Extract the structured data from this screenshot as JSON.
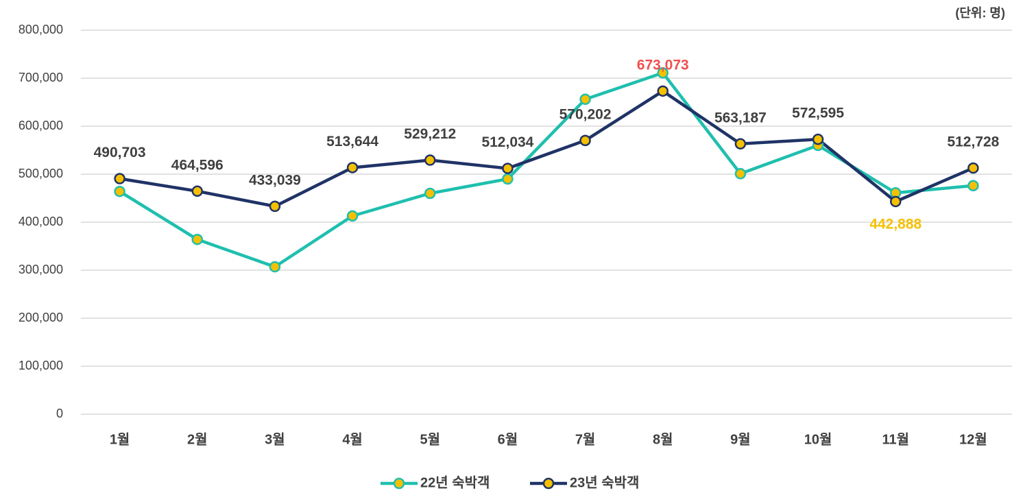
{
  "chart_data": {
    "type": "line",
    "unit": "(단위: 명)",
    "categories": [
      "1월",
      "2월",
      "3월",
      "4월",
      "5월",
      "6월",
      "7월",
      "8월",
      "9월",
      "10월",
      "11월",
      "12월"
    ],
    "series": [
      {
        "name": "22년 숙박객",
        "color": "#1fbfae",
        "marker_color": "#f5c000",
        "values": [
          464000,
          364000,
          307000,
          413000,
          460000,
          490000,
          656000,
          711000,
          501000,
          560000,
          461000,
          476000
        ]
      },
      {
        "name": "23년 숙박객",
        "color": "#1f3366",
        "marker_color": "#f5c000",
        "values": [
          490703,
          464596,
          433039,
          513644,
          529212,
          512034,
          570202,
          673073,
          563187,
          572595,
          442888,
          512728
        ],
        "value_labels": [
          "490,703",
          "464,596",
          "433,039",
          "513,644",
          "529,212",
          "512,034",
          "570,202",
          "673,073",
          "563,187",
          "572,595",
          "442,888",
          "512,728"
        ],
        "value_label_colors": [
          "#404040",
          "#404040",
          "#404040",
          "#404040",
          "#404040",
          "#404040",
          "#404040",
          "#f05050",
          "#404040",
          "#404040",
          "#f5c000",
          "#404040"
        ],
        "value_label_positions": [
          "above",
          "above",
          "above",
          "above",
          "above",
          "above",
          "above",
          "above",
          "above",
          "above",
          "below",
          "above"
        ]
      }
    ],
    "ylim": [
      0,
      800000
    ],
    "yticks": [
      0,
      {
        "value": 100000,
        "label": "100,000"
      },
      {
        "value": 200000,
        "label": "200,000"
      },
      {
        "value": 300000,
        "label": "300,000"
      },
      {
        "value": 400000,
        "label": "400,000"
      },
      {
        "value": 500000,
        "label": "500,000"
      },
      {
        "value": 600000,
        "label": "600,000"
      },
      {
        "value": 700000,
        "label": "700,000"
      },
      {
        "value": 800000,
        "label": "800,000"
      }
    ],
    "grid": true,
    "legend": "bottom"
  }
}
